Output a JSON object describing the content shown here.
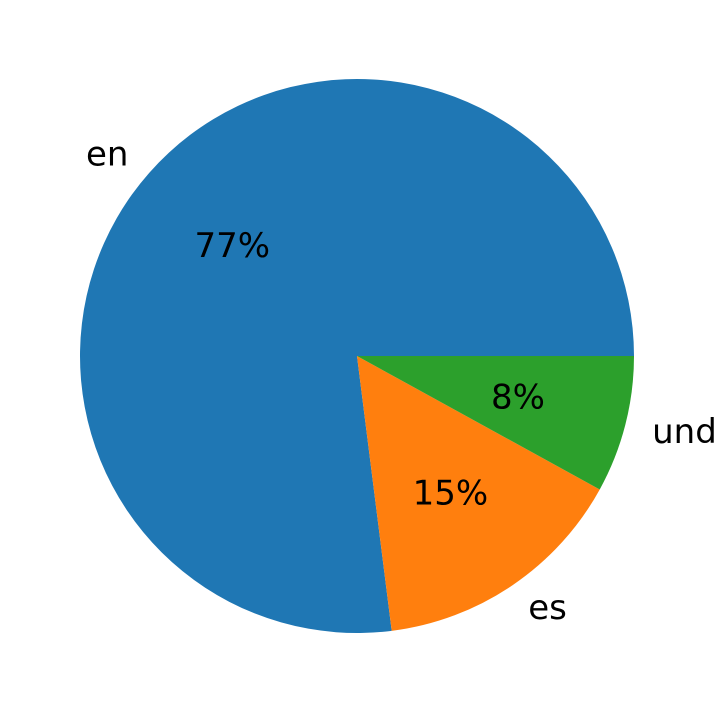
{
  "chart_data": {
    "type": "pie",
    "slices": [
      {
        "label": "en",
        "value": 77,
        "pct_text": "77%",
        "color": "#1f77b4"
      },
      {
        "label": "es",
        "value": 15,
        "pct_text": "15%",
        "color": "#ff7f0e"
      },
      {
        "label": "und",
        "value": 8,
        "pct_text": "8%",
        "color": "#2ca02c"
      }
    ],
    "start_angle_deg": 0,
    "direction": "counterclockwise",
    "title": ""
  }
}
